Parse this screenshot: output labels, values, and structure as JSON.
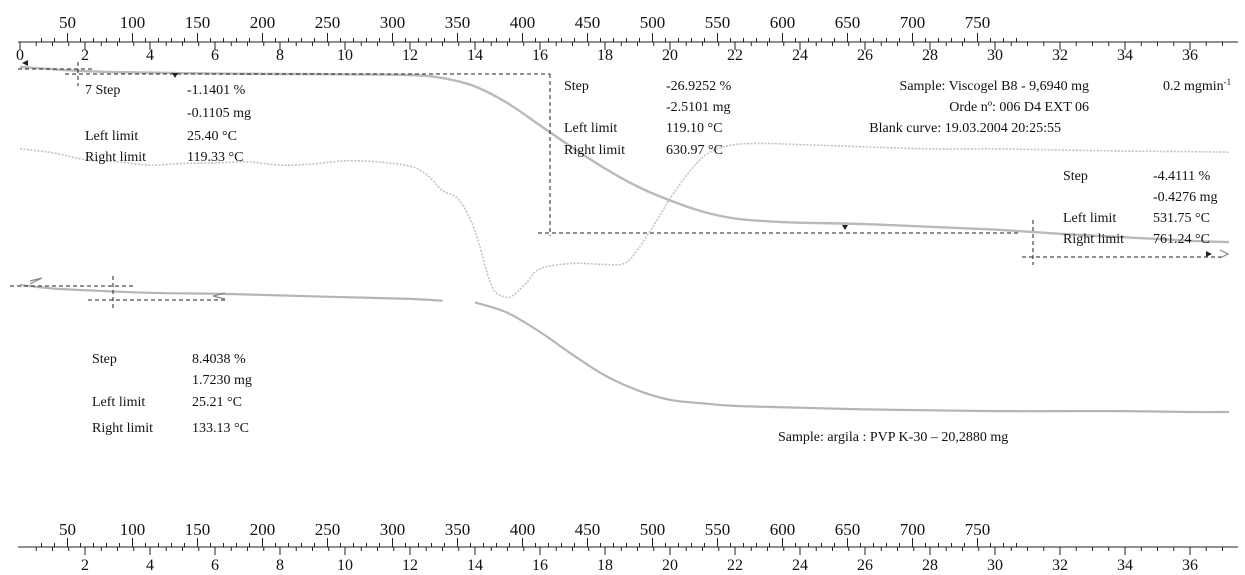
{
  "chart_data": {
    "type": "line",
    "temperature_axis": {
      "ticks": [
        "50",
        "100",
        "150",
        "200",
        "250",
        "300",
        "350",
        "400",
        "450",
        "500",
        "550",
        "600",
        "650",
        "700",
        "750"
      ]
    },
    "time_axis": {
      "ticks": [
        "0",
        "2",
        "4",
        "6",
        "8",
        "10",
        "12",
        "14",
        "16",
        "18",
        "20",
        "22",
        "24",
        "26",
        "28",
        "30",
        "32",
        "34",
        "36"
      ],
      "bottom_ticks": [
        "2",
        "4",
        "6",
        "8",
        "10",
        "12",
        "14",
        "16",
        "18",
        "20",
        "22",
        "24",
        "26",
        "28",
        "30",
        "32",
        "34",
        "36"
      ]
    },
    "series": [
      {
        "kind": "tg",
        "points": [
          [
            0,
            100
          ],
          [
            2,
            99.4
          ],
          [
            4,
            99.2
          ],
          [
            6,
            99.05
          ],
          [
            8,
            99.0
          ],
          [
            10,
            98.95
          ],
          [
            12,
            98.85
          ],
          [
            13,
            98.4
          ],
          [
            14,
            97.2
          ],
          [
            15,
            94.8
          ],
          [
            16,
            91.6
          ],
          [
            17,
            88.4
          ],
          [
            18,
            85.4
          ],
          [
            19,
            82.8
          ],
          [
            20,
            80.8
          ],
          [
            21,
            79.2
          ],
          [
            22,
            78.2
          ],
          [
            23,
            77.8
          ],
          [
            24,
            77.6
          ],
          [
            26,
            77.4
          ],
          [
            28,
            77.0
          ],
          [
            30,
            76.6
          ],
          [
            32,
            76.0
          ],
          [
            34,
            75.5
          ],
          [
            36,
            75.0
          ],
          [
            37.2,
            74.8
          ]
        ]
      },
      {
        "kind": "dtg",
        "points": [
          [
            0,
            0.02
          ],
          [
            1,
            -0.05
          ],
          [
            2,
            -0.18
          ],
          [
            3,
            -0.22
          ],
          [
            4,
            -0.28
          ],
          [
            5,
            -0.25
          ],
          [
            6,
            -0.24
          ],
          [
            7,
            -0.22
          ],
          [
            8,
            -0.28
          ],
          [
            9,
            -0.26
          ],
          [
            10,
            -0.2
          ],
          [
            11,
            -0.22
          ],
          [
            12,
            -0.3
          ],
          [
            12.5,
            -0.45
          ],
          [
            13,
            -0.75
          ],
          [
            13.5,
            -0.92
          ],
          [
            14,
            -1.5
          ],
          [
            14.5,
            -2.5
          ],
          [
            14.9,
            -2.72
          ],
          [
            15.2,
            -2.68
          ],
          [
            15.6,
            -2.45
          ],
          [
            16,
            -2.2
          ],
          [
            17,
            -2.1
          ],
          [
            18,
            -2.12
          ],
          [
            18.6,
            -2.1
          ],
          [
            19,
            -1.85
          ],
          [
            19.6,
            -1.3
          ],
          [
            20,
            -0.9
          ],
          [
            20.6,
            -0.4
          ],
          [
            21.2,
            -0.05
          ],
          [
            22,
            0.1
          ],
          [
            23,
            0.12
          ],
          [
            24,
            0.1
          ],
          [
            26,
            0.06
          ],
          [
            28,
            0.02
          ],
          [
            30,
            0.02
          ],
          [
            32,
            0.0
          ],
          [
            34,
            -0.02
          ],
          [
            36,
            -0.03
          ],
          [
            37.2,
            -0.04
          ]
        ]
      },
      {
        "kind": "tg",
        "points": [
          [
            0,
            100
          ],
          [
            1,
            99.6
          ],
          [
            2,
            99.4
          ],
          [
            4,
            99.1
          ],
          [
            6,
            99.0
          ],
          [
            8,
            98.8
          ],
          [
            10,
            98.6
          ],
          [
            12,
            98.4
          ],
          [
            13,
            98.2
          ],
          [
            14,
            98.0
          ],
          [
            15,
            96.8
          ],
          [
            16,
            94.6
          ],
          [
            17,
            92.0
          ],
          [
            18,
            89.6
          ],
          [
            19,
            87.9
          ],
          [
            20,
            86.8
          ],
          [
            21,
            86.4
          ],
          [
            22,
            86.1
          ],
          [
            24,
            85.9
          ],
          [
            26,
            85.7
          ],
          [
            28,
            85.6
          ],
          [
            30,
            85.5
          ],
          [
            32,
            85.5
          ],
          [
            34,
            85.5
          ],
          [
            36,
            85.4
          ],
          [
            37.2,
            85.4
          ]
        ]
      }
    ],
    "annotations": {
      "step1": {
        "step": "7 Step",
        "pct": "-1.1401 %",
        "mg": "-0.1105 mg",
        "left_label": "Left limit",
        "left": "25.40 °C",
        "right_label": "Right limit",
        "right": "119.33 °C"
      },
      "step2": {
        "step": "Step",
        "pct": "-26.9252 %",
        "mg": "-2.5101 mg",
        "left_label": "Left limit",
        "left": "119.10 °C",
        "right_label": "Right limit",
        "right": "630.97 °C"
      },
      "step3": {
        "step": "Step",
        "pct": "-4.4111 %",
        "mg": "-0.4276 mg",
        "left_label": "Left limit",
        "left": "531.75 °C",
        "right_label": "Right limit",
        "right": "761.24 °C"
      },
      "step4": {
        "step": "Step",
        "pct": "8.4038 %",
        "mg": "1.7230 mg",
        "left_label": "Left limit",
        "left": "25.21 °C",
        "right_label": "Right limit",
        "right": "133.13 °C"
      },
      "sample1": "Sample: Viscogel B8 - 9,6940 mg",
      "order": "Orde nº: 006 D4 EXT 06",
      "blank": "Blank curve: 19.03.2004 20:25:55",
      "rate": "0.2 mgmin",
      "rate_exp": "-1",
      "sample2": "Sample: argila : PVP K-30 – 20,2880 mg"
    }
  }
}
